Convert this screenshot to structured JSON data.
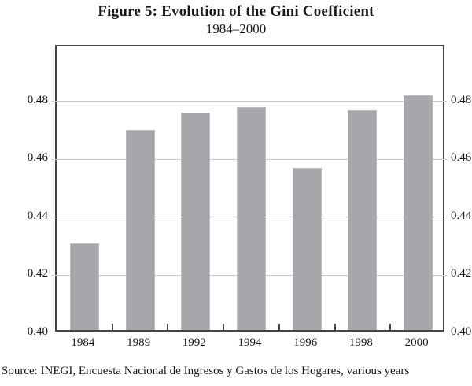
{
  "figure": {
    "title": "Figure 5: Evolution of the Gini Coefficient",
    "subtitle": "1984–2000",
    "source": "Source: INEGI, Encuesta Nacional de Ingresos y Gastos de los Hogares, various years"
  },
  "chart_data": {
    "type": "bar",
    "title": "Figure 5: Evolution of the Gini Coefficient",
    "subtitle": "1984–2000",
    "categories": [
      "1984",
      "1989",
      "1992",
      "1994",
      "1996",
      "1998",
      "2000"
    ],
    "values": [
      0.43,
      0.469,
      0.475,
      0.477,
      0.456,
      0.476,
      0.481
    ],
    "xlabel": "",
    "ylabel": "",
    "ylim": [
      0.4,
      0.499
    ],
    "yticks": [
      "0.40",
      "0.42",
      "0.44",
      "0.46",
      "0.48"
    ],
    "ytick_sides": [
      "left",
      "right"
    ],
    "grid": true,
    "legend": "none",
    "bar_color": "#a7a7ab",
    "source": "Source: INEGI, Encuesta Nacional de Ingresos y Gastos de los Hogares, various years"
  }
}
